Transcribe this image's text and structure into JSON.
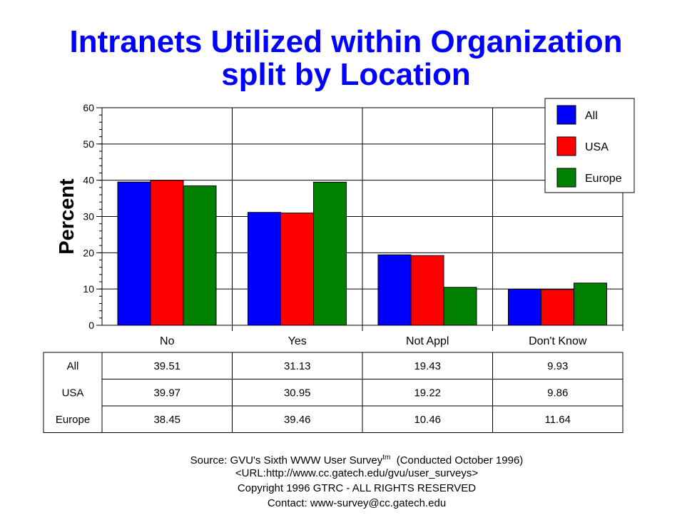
{
  "title_line1": "Intranets Utilized within Organization",
  "title_line2": "split by Location",
  "chart_data": {
    "type": "bar",
    "ylabel": "Percent",
    "ylim": [
      0,
      60
    ],
    "yticks": [
      0,
      10,
      20,
      30,
      40,
      50,
      60
    ],
    "grid": true,
    "legend_placement": "top-right",
    "categories": [
      "No",
      "Yes",
      "Not Appl",
      "Don't Know"
    ],
    "series": [
      {
        "name": "All",
        "color": "#0000ff",
        "values": [
          39.51,
          31.13,
          19.43,
          9.93
        ]
      },
      {
        "name": "USA",
        "color": "#ff0000",
        "values": [
          39.97,
          30.95,
          19.22,
          9.86
        ]
      },
      {
        "name": "Europe",
        "color": "#008000",
        "values": [
          38.45,
          39.46,
          10.46,
          11.64
        ]
      }
    ],
    "table_values": [
      [
        "39.51",
        "31.13",
        "19.43",
        "9.93"
      ],
      [
        "39.97",
        "30.95",
        "19.22",
        "9.86"
      ],
      [
        "38.45",
        "39.46",
        "10.46",
        "11.64"
      ]
    ]
  },
  "footer": {
    "source_prefix": "Source: GVU's Sixth WWW User Survey",
    "source_sup": "tm",
    "source_suffix": "  (Conducted October 1996)",
    "url": "<URL:http://www.cc.gatech.edu/gvu/user_surveys>",
    "copyright": "Copyright 1996 GTRC -  ALL RIGHTS RESERVED",
    "contact": "Contact: www-survey@cc.gatech.edu"
  }
}
